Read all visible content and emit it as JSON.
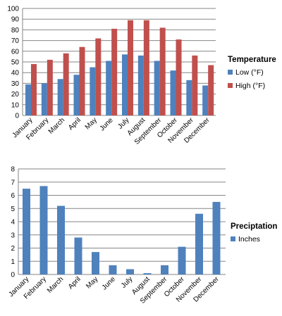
{
  "chart_data": [
    {
      "type": "bar",
      "categories": [
        "January",
        "February",
        "March",
        "April",
        "May",
        "June",
        "July",
        "August",
        "September",
        "October",
        "November",
        "December"
      ],
      "legend_title": "Temperature",
      "legend_position": "right",
      "ylim": [
        0,
        100
      ],
      "yticks": [
        0,
        10,
        20,
        30,
        40,
        50,
        60,
        70,
        80,
        90,
        100
      ],
      "grid": true,
      "series": [
        {
          "name": "Low (°F)",
          "color": "#4F81BD",
          "values": [
            29,
            30,
            34,
            38,
            45,
            51,
            57,
            56,
            51,
            42,
            33,
            28
          ]
        },
        {
          "name": "High (°F)",
          "color": "#C0504D",
          "values": [
            48,
            52,
            58,
            64,
            72,
            81,
            89,
            89,
            82,
            71,
            56,
            47
          ]
        }
      ]
    },
    {
      "type": "bar",
      "categories": [
        "January",
        "February",
        "March",
        "April",
        "May",
        "June",
        "July",
        "August",
        "September",
        "October",
        "November",
        "December"
      ],
      "legend_title": "Preciptation",
      "legend_position": "right",
      "ylim": [
        0,
        8
      ],
      "yticks": [
        0,
        1,
        2,
        3,
        4,
        5,
        6,
        7,
        8
      ],
      "grid": true,
      "series": [
        {
          "name": "Inches",
          "color": "#4F81BD",
          "values": [
            6.5,
            6.7,
            5.2,
            2.8,
            1.7,
            0.7,
            0.4,
            0.1,
            0.7,
            2.1,
            4.6,
            5.5
          ]
        }
      ]
    }
  ]
}
